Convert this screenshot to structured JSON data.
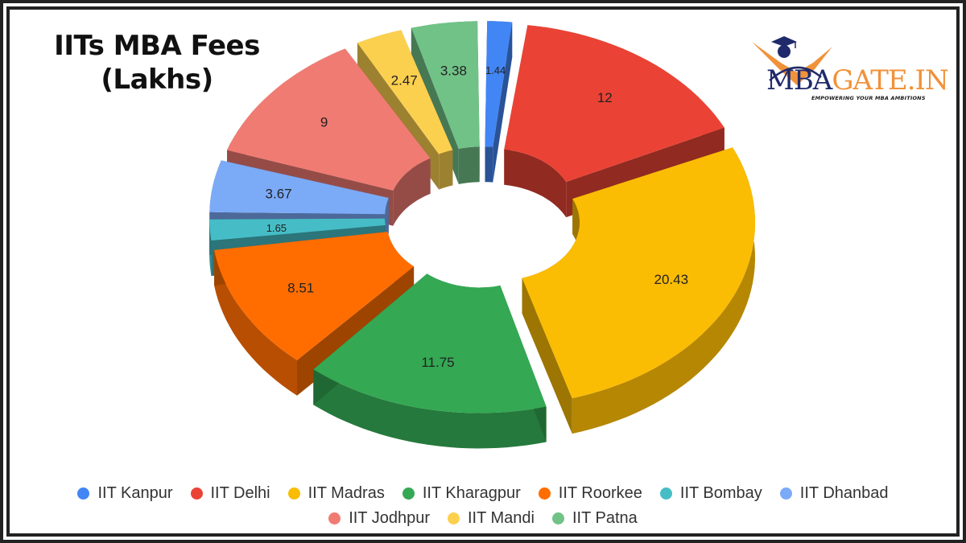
{
  "title": {
    "line1": "IITs MBA Fees",
    "line2": "(Lakhs)"
  },
  "logo": {
    "part1": "MBA",
    "part2": "GATE.IN",
    "tagline": "EMPOWERING YOUR MBA AMBITIONS",
    "icon": "graduation-cap-person-icon"
  },
  "chart_data": {
    "type": "pie",
    "subtype": "3d-exploded-donut",
    "title": "IITs MBA Fees (Lakhs)",
    "categories": [
      "IIT Kanpur",
      "IIT Delhi",
      "IIT Madras",
      "IIT Kharagpur",
      "IIT Roorkee",
      "IIT Bombay",
      "IIT Dhanbad",
      "IIT Jodhpur",
      "IIT Mandi",
      "IIT Patna"
    ],
    "values": [
      1.44,
      12,
      20.43,
      11.75,
      8.51,
      1.65,
      3.67,
      9,
      2.47,
      3.38
    ],
    "labels": [
      "1.44",
      "12",
      "20.43",
      "11.75",
      "8.51",
      "1.65",
      "3.67",
      "9",
      "2.47",
      "3.38"
    ],
    "colors": [
      "#4285f4",
      "#ea4335",
      "#fbbc04",
      "#34a853",
      "#ff6d01",
      "#46bdc6",
      "#7baaf7",
      "#f07b72",
      "#fcd04f",
      "#71c287"
    ],
    "legend_position": "bottom",
    "data_labels": "values"
  },
  "legend": {
    "rows": [
      [
        0,
        1,
        2,
        3,
        4,
        5,
        6
      ],
      [
        7,
        8,
        9
      ]
    ]
  }
}
